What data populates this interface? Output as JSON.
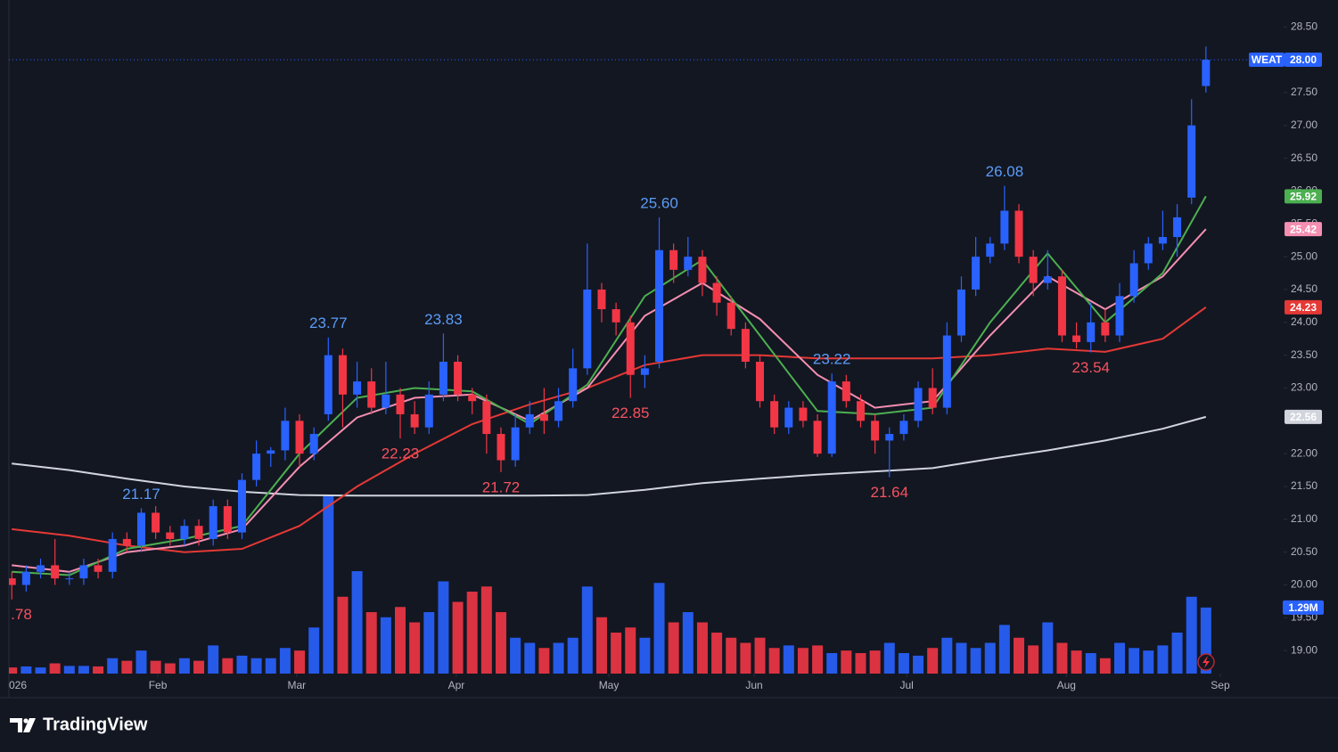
{
  "chart_data": {
    "type": "candlestick",
    "symbol": "WEAT",
    "last_price_label": "28.00",
    "up_color": "#2962ff",
    "down_color": "#f23645",
    "candles": {
      "open": [
        20.1,
        20.0,
        20.2,
        20.3,
        20.1,
        20.1,
        20.3,
        20.2,
        20.7,
        20.6,
        21.1,
        20.8,
        20.7,
        20.9,
        20.7,
        21.2,
        20.8,
        21.6,
        22.0,
        22.05,
        22.5,
        22.0,
        22.6,
        23.5,
        22.9,
        23.1,
        22.7,
        22.9,
        22.6,
        22.4,
        22.9,
        23.4,
        22.9,
        22.8,
        22.3,
        21.9,
        22.4,
        22.6,
        22.5,
        22.8,
        23.3,
        24.5,
        24.2,
        24.0,
        23.2,
        23.4,
        25.1,
        24.8,
        25.0,
        24.6,
        24.3,
        23.9,
        23.4,
        22.8,
        22.4,
        22.7,
        22.5,
        22.0,
        23.1,
        22.8,
        22.5,
        22.2,
        22.3,
        22.5,
        23.0,
        22.7,
        23.8,
        24.5,
        25.0,
        25.2,
        25.7,
        25.0,
        24.6,
        24.7,
        23.8,
        23.7,
        24.0,
        23.8,
        24.4,
        24.9,
        25.2,
        25.3,
        25.9,
        27.6
      ],
      "high": [
        20.2,
        20.3,
        20.4,
        20.7,
        20.2,
        20.4,
        20.4,
        20.8,
        20.8,
        21.17,
        21.2,
        20.9,
        21.0,
        21.0,
        21.3,
        21.3,
        21.7,
        22.2,
        22.1,
        22.7,
        22.6,
        22.4,
        23.77,
        23.6,
        23.4,
        23.3,
        23.4,
        23.0,
        22.8,
        23.1,
        23.83,
        23.5,
        23.0,
        22.9,
        22.4,
        22.6,
        22.8,
        23.0,
        23.0,
        23.6,
        25.2,
        24.6,
        24.3,
        24.1,
        23.5,
        25.6,
        25.2,
        25.3,
        25.1,
        24.7,
        24.4,
        24.0,
        23.5,
        22.9,
        22.8,
        22.8,
        22.6,
        23.22,
        23.2,
        22.9,
        22.6,
        22.4,
        22.6,
        23.1,
        23.3,
        24.0,
        24.7,
        25.3,
        25.3,
        26.08,
        25.8,
        25.1,
        25.1,
        24.8,
        24.0,
        24.3,
        24.2,
        24.6,
        25.1,
        25.3,
        25.7,
        25.8,
        27.4,
        28.2
      ],
      "low": [
        19.78,
        19.9,
        20.1,
        20.0,
        20.0,
        20.0,
        20.1,
        20.1,
        20.5,
        20.5,
        20.7,
        20.6,
        20.6,
        20.6,
        20.6,
        20.7,
        20.7,
        21.5,
        21.8,
        21.9,
        21.8,
        21.9,
        22.5,
        22.4,
        22.7,
        22.6,
        22.6,
        22.23,
        22.3,
        22.3,
        22.8,
        22.8,
        22.6,
        22.0,
        21.72,
        21.8,
        22.3,
        22.3,
        22.4,
        22.7,
        23.2,
        24.0,
        23.8,
        22.85,
        23.0,
        23.3,
        24.6,
        24.7,
        24.4,
        24.1,
        23.8,
        23.3,
        22.7,
        22.3,
        22.3,
        22.4,
        21.95,
        21.95,
        22.7,
        22.4,
        22.0,
        21.64,
        22.2,
        22.4,
        22.6,
        22.6,
        23.7,
        24.4,
        24.9,
        25.1,
        24.9,
        24.4,
        24.5,
        23.7,
        23.6,
        23.54,
        23.7,
        23.7,
        24.3,
        24.8,
        25.1,
        25.0,
        25.8,
        27.5
      ],
      "close": [
        20.0,
        20.2,
        20.3,
        20.1,
        20.1,
        20.3,
        20.2,
        20.7,
        20.6,
        21.1,
        20.8,
        20.7,
        20.9,
        20.7,
        21.2,
        20.8,
        21.6,
        22.0,
        22.05,
        22.5,
        22.0,
        22.3,
        23.5,
        22.9,
        23.1,
        22.7,
        22.9,
        22.6,
        22.4,
        22.9,
        23.4,
        22.9,
        22.8,
        22.3,
        21.9,
        22.4,
        22.6,
        22.5,
        22.8,
        23.3,
        24.5,
        24.2,
        24.0,
        23.2,
        23.3,
        25.1,
        24.8,
        25.0,
        24.6,
        24.3,
        23.9,
        23.4,
        22.8,
        22.4,
        22.7,
        22.5,
        22.0,
        23.1,
        22.8,
        22.5,
        22.2,
        22.3,
        22.5,
        23.0,
        22.7,
        23.8,
        24.5,
        25.0,
        25.2,
        25.7,
        25.0,
        24.6,
        24.7,
        23.8,
        23.7,
        24.0,
        23.8,
        24.4,
        24.9,
        25.2,
        25.3,
        25.6,
        27.0,
        28.0
      ]
    },
    "high_labels": [
      null,
      null,
      null,
      null,
      null,
      null,
      null,
      null,
      null,
      "21.17",
      null,
      null,
      null,
      null,
      null,
      null,
      null,
      null,
      null,
      null,
      null,
      null,
      "23.77",
      null,
      null,
      null,
      null,
      null,
      null,
      null,
      "23.83",
      null,
      null,
      null,
      null,
      null,
      null,
      null,
      null,
      null,
      null,
      null,
      null,
      null,
      null,
      "25.60",
      null,
      null,
      null,
      null,
      null,
      null,
      null,
      null,
      null,
      null,
      null,
      "23.22",
      null,
      null,
      null,
      null,
      null,
      null,
      null,
      null,
      null,
      null,
      null,
      "26.08",
      null,
      null,
      null,
      null,
      null,
      null,
      null,
      null,
      null,
      null,
      null,
      null,
      null,
      null
    ],
    "low_labels": [
      ".78",
      null,
      null,
      null,
      null,
      null,
      null,
      null,
      null,
      null,
      null,
      null,
      null,
      null,
      null,
      null,
      null,
      null,
      null,
      null,
      null,
      null,
      null,
      null,
      null,
      null,
      null,
      "22.23",
      null,
      null,
      null,
      null,
      null,
      null,
      "21.72",
      null,
      null,
      null,
      null,
      null,
      null,
      null,
      null,
      "22.85",
      null,
      null,
      null,
      null,
      null,
      null,
      null,
      null,
      null,
      null,
      null,
      null,
      null,
      null,
      null,
      null,
      null,
      "21.64",
      null,
      null,
      null,
      null,
      null,
      null,
      null,
      null,
      null,
      null,
      null,
      null,
      null,
      "23.54",
      null,
      null,
      null,
      null,
      null,
      null,
      null,
      null
    ],
    "volume": [
      0.12,
      0.14,
      0.12,
      0.2,
      0.15,
      0.15,
      0.14,
      0.3,
      0.25,
      0.45,
      0.25,
      0.2,
      0.3,
      0.25,
      0.55,
      0.3,
      0.35,
      0.3,
      0.3,
      0.5,
      0.45,
      0.9,
      3.47,
      1.5,
      2.0,
      1.2,
      1.1,
      1.3,
      1.0,
      1.2,
      1.8,
      1.4,
      1.6,
      1.7,
      1.2,
      0.7,
      0.6,
      0.5,
      0.6,
      0.7,
      1.7,
      1.1,
      0.8,
      0.9,
      0.7,
      1.77,
      1.0,
      1.2,
      1.0,
      0.8,
      0.7,
      0.6,
      0.7,
      0.5,
      0.55,
      0.5,
      0.55,
      0.4,
      0.45,
      0.4,
      0.45,
      0.6,
      0.4,
      0.35,
      0.5,
      0.7,
      0.6,
      0.5,
      0.6,
      0.95,
      0.7,
      0.55,
      1.0,
      0.6,
      0.45,
      0.4,
      0.3,
      0.6,
      0.5,
      0.45,
      0.55,
      0.8,
      1.5,
      1.29
    ],
    "volume_label": "1.29M",
    "volume_ylim": [
      0,
      13.15
    ],
    "moving_averages": [
      {
        "color": "#d1d4dc",
        "x": [
          0,
          4,
          8,
          12,
          16,
          20,
          24,
          28,
          32,
          36,
          40,
          44,
          48,
          52,
          56,
          60,
          64,
          68,
          72,
          76,
          80,
          83
        ],
        "values": [
          21.85,
          21.75,
          21.62,
          21.5,
          21.42,
          21.37,
          21.36,
          21.36,
          21.36,
          21.36,
          21.37,
          21.45,
          21.55,
          21.62,
          21.68,
          21.73,
          21.78,
          21.92,
          22.05,
          22.2,
          22.38,
          22.56
        ]
      },
      {
        "color": "#e53935",
        "x": [
          0,
          4,
          8,
          12,
          16,
          20,
          24,
          28,
          32,
          36,
          40,
          44,
          48,
          52,
          56,
          60,
          64,
          68,
          72,
          76,
          80,
          83
        ],
        "values": [
          20.85,
          20.75,
          20.6,
          20.5,
          20.55,
          20.9,
          21.5,
          22.0,
          22.45,
          22.75,
          23.0,
          23.35,
          23.5,
          23.5,
          23.45,
          23.45,
          23.45,
          23.5,
          23.6,
          23.55,
          23.75,
          24.23
        ]
      },
      {
        "color": "#f48fb1",
        "x": [
          0,
          4,
          8,
          12,
          16,
          20,
          24,
          28,
          32,
          36,
          40,
          44,
          48,
          52,
          56,
          60,
          64,
          68,
          72,
          76,
          80,
          83
        ],
        "values": [
          20.3,
          20.2,
          20.5,
          20.6,
          20.85,
          21.8,
          22.55,
          22.85,
          22.9,
          22.5,
          23.0,
          24.1,
          24.6,
          24.05,
          23.2,
          22.7,
          22.8,
          23.8,
          24.7,
          24.2,
          24.7,
          25.42
        ]
      },
      {
        "color": "#4caf50",
        "x": [
          0,
          4,
          8,
          12,
          16,
          20,
          24,
          28,
          32,
          36,
          40,
          44,
          48,
          52,
          56,
          60,
          64,
          68,
          72,
          76,
          80,
          83
        ],
        "values": [
          20.2,
          20.15,
          20.55,
          20.7,
          20.9,
          22.0,
          22.85,
          23.0,
          22.95,
          22.45,
          23.05,
          24.4,
          24.95,
          23.8,
          22.65,
          22.6,
          22.7,
          24.0,
          25.05,
          24.0,
          24.75,
          25.92
        ]
      }
    ],
    "xlim": [
      -0.2,
      88.4
    ],
    "xticks": [
      {
        "value": -0.2,
        "label": "026"
      },
      {
        "value": 10.15,
        "label": "Feb"
      },
      {
        "value": 19.8,
        "label": "Mar"
      },
      {
        "value": 30.9,
        "label": "Apr"
      },
      {
        "value": 41.5,
        "label": "May"
      },
      {
        "value": 51.6,
        "label": "Jun"
      },
      {
        "value": 62.2,
        "label": "Jul"
      },
      {
        "value": 73.3,
        "label": "Aug"
      },
      {
        "value": 84,
        "label": "Sep"
      }
    ],
    "ylim": [
      18.65,
      28.91
    ],
    "yticks": [
      {
        "value": 19,
        "label": "19.00"
      },
      {
        "value": 19.5,
        "label": "19.50"
      },
      {
        "value": 20,
        "label": "20.00"
      },
      {
        "value": 20.5,
        "label": "20.50"
      },
      {
        "value": 21,
        "label": "21.00"
      },
      {
        "value": 21.5,
        "label": "21.50"
      },
      {
        "value": 22,
        "label": "22.00"
      },
      {
        "value": 22.5,
        "label": "22.50"
      },
      {
        "value": 23,
        "label": "23.00"
      },
      {
        "value": 23.5,
        "label": "23.50"
      },
      {
        "value": 24,
        "label": "24.00"
      },
      {
        "value": 24.5,
        "label": "24.50"
      },
      {
        "value": 25,
        "label": "25.00"
      },
      {
        "value": 25.5,
        "label": "25.50"
      },
      {
        "value": 26,
        "label": "26.00"
      },
      {
        "value": 26.5,
        "label": "26.50"
      },
      {
        "value": 27,
        "label": "27.00"
      },
      {
        "value": 27.5,
        "label": "27.50"
      },
      {
        "value": 28,
        "label": "28.00"
      },
      {
        "value": 28.5,
        "label": "28.50"
      }
    ]
  },
  "brand": "TradingView"
}
